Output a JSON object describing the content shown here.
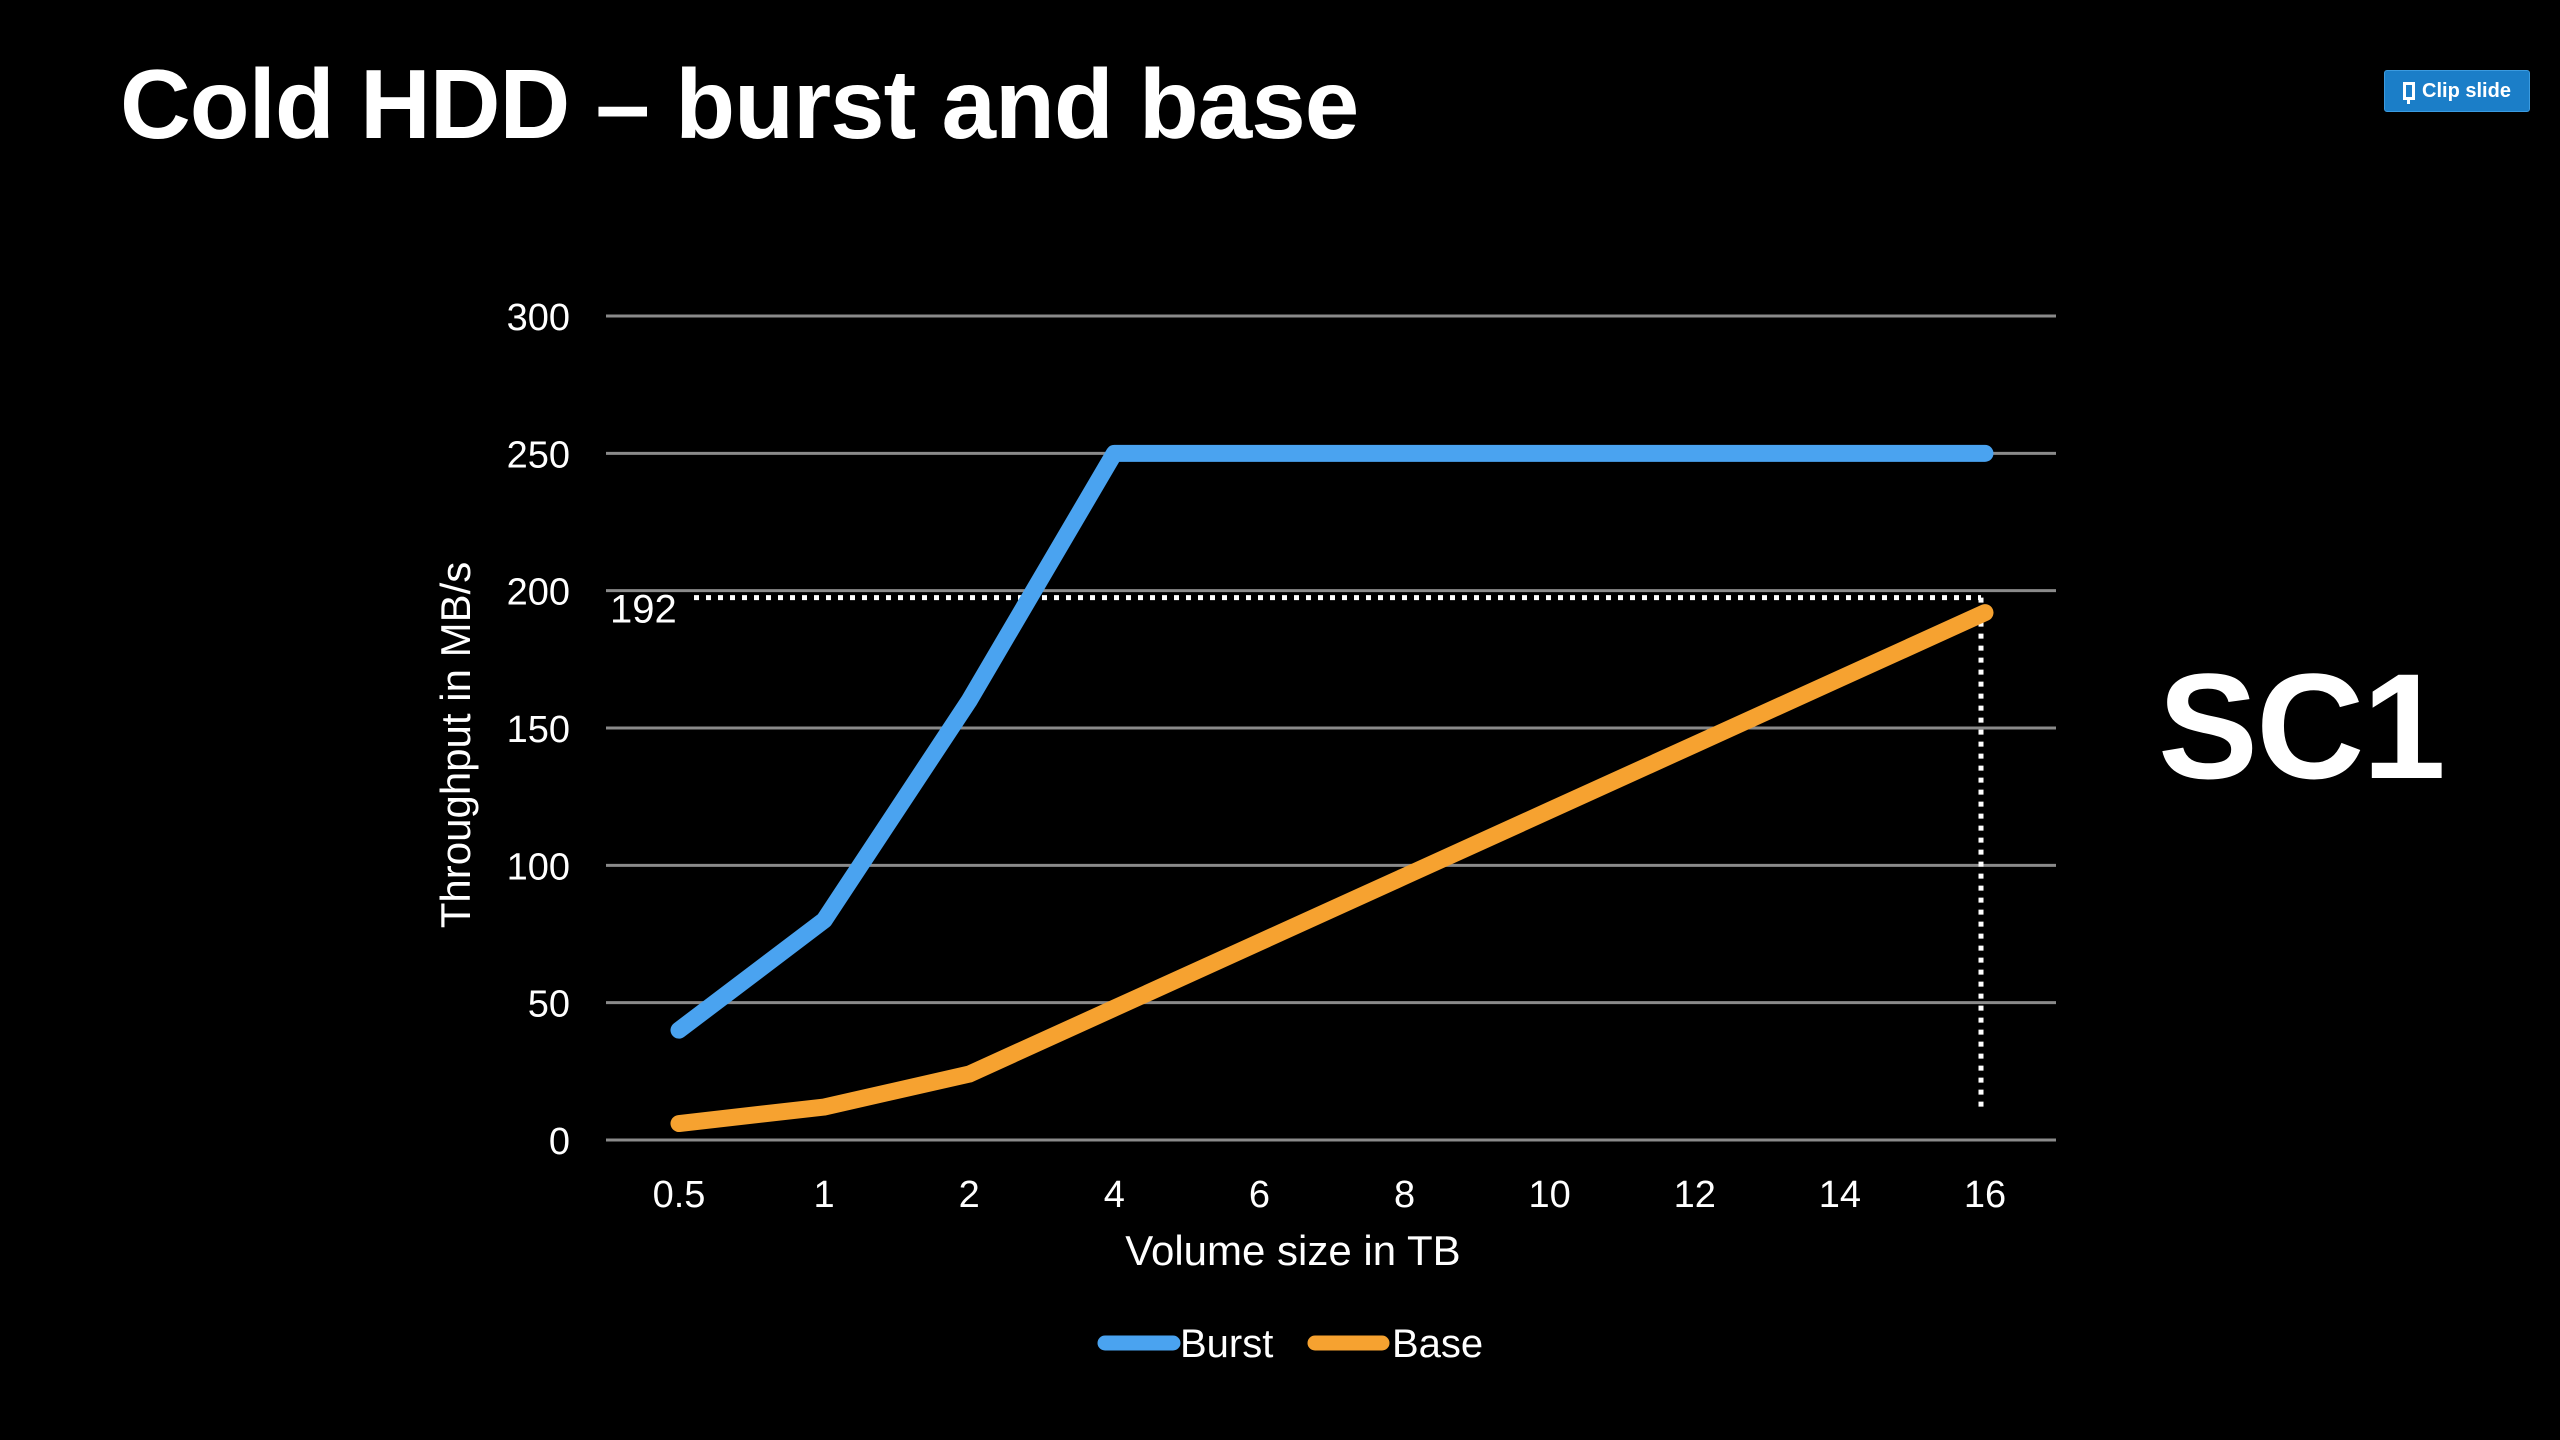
{
  "slide": {
    "title": "Cold HDD – burst and base",
    "side_label": "SC1",
    "clip_button_label": "Clip slide"
  },
  "colors": {
    "background": "#000000",
    "burst": "#4aa3f0",
    "base": "#f6a230",
    "grid": "#8a8a8a",
    "button": "#1b7ec8"
  },
  "chart_data": {
    "type": "line",
    "title": "",
    "xlabel": "Volume size in TB",
    "ylabel": "Throughput in MB/s",
    "categories": [
      "0.5",
      "1",
      "2",
      "4",
      "6",
      "8",
      "10",
      "12",
      "14",
      "16"
    ],
    "ylim": [
      0,
      300
    ],
    "yticks": [
      0,
      50,
      100,
      150,
      200,
      250,
      300
    ],
    "grid": true,
    "legend": "bottom",
    "series": [
      {
        "name": "Burst",
        "values": [
          40,
          80,
          160,
          250,
          250,
          250,
          250,
          250,
          250,
          250
        ]
      },
      {
        "name": "Base",
        "values": [
          6,
          12,
          24,
          48,
          72,
          96,
          120,
          144,
          168,
          192
        ]
      }
    ],
    "annotation": {
      "label": "192",
      "value": 192,
      "category": "16"
    }
  }
}
